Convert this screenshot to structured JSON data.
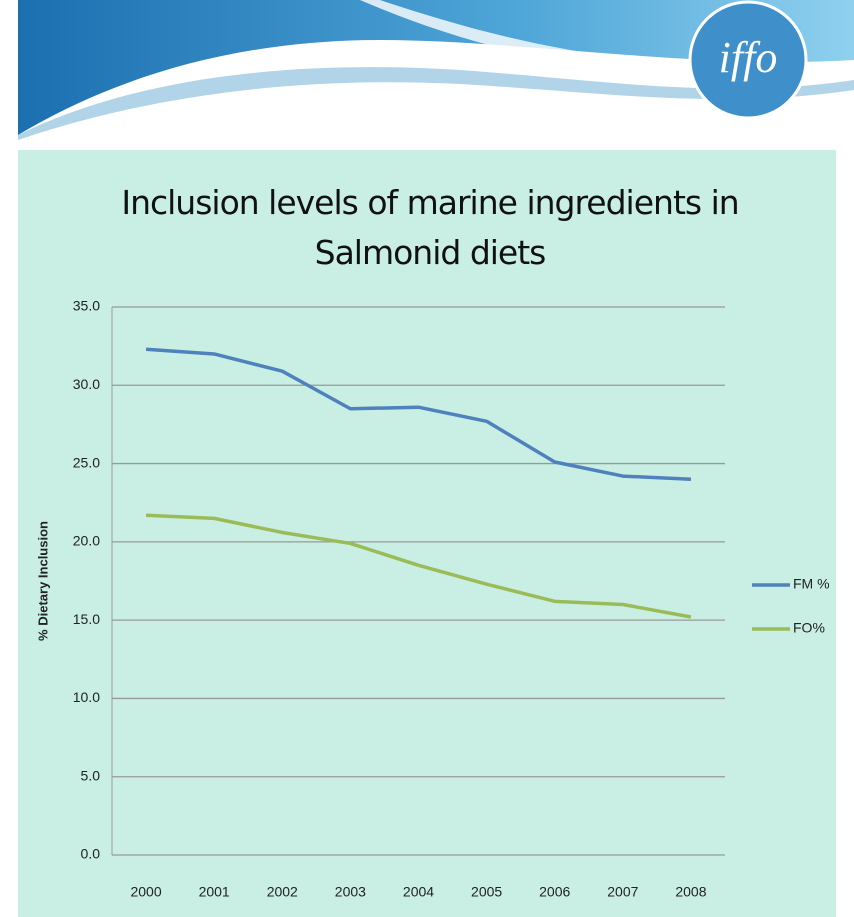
{
  "header": {
    "logo": "iffo"
  },
  "chart_data": {
    "type": "line",
    "title": "Inclusion levels of marine ingredients in Salmonid diets",
    "y_label": "% Dietary Inclusion",
    "categories": [
      "2000",
      "2001",
      "2002",
      "2003",
      "2004",
      "2005",
      "2006",
      "2007",
      "2008"
    ],
    "series": [
      {
        "name": "FM %",
        "color": "#4f81bd",
        "values": [
          32.3,
          32.0,
          30.9,
          28.5,
          28.6,
          27.7,
          25.1,
          24.2,
          24.0
        ]
      },
      {
        "name": "FO%",
        "color": "#9bbb59",
        "values": [
          21.7,
          21.5,
          20.6,
          19.9,
          18.5,
          17.3,
          16.2,
          16.0,
          15.2
        ]
      }
    ],
    "ylim": [
      0,
      35
    ],
    "yticks": [
      {
        "value": 0,
        "label": "0.0"
      },
      {
        "value": 5,
        "label": "5.0"
      },
      {
        "value": 10,
        "label": "10.0"
      },
      {
        "value": 15,
        "label": "15.0"
      },
      {
        "value": 20,
        "label": "20.0"
      },
      {
        "value": 25,
        "label": "25.0"
      },
      {
        "value": 30,
        "label": "30.0"
      },
      {
        "value": 35,
        "label": "35.0"
      }
    ],
    "grid": true,
    "legend": "right"
  }
}
